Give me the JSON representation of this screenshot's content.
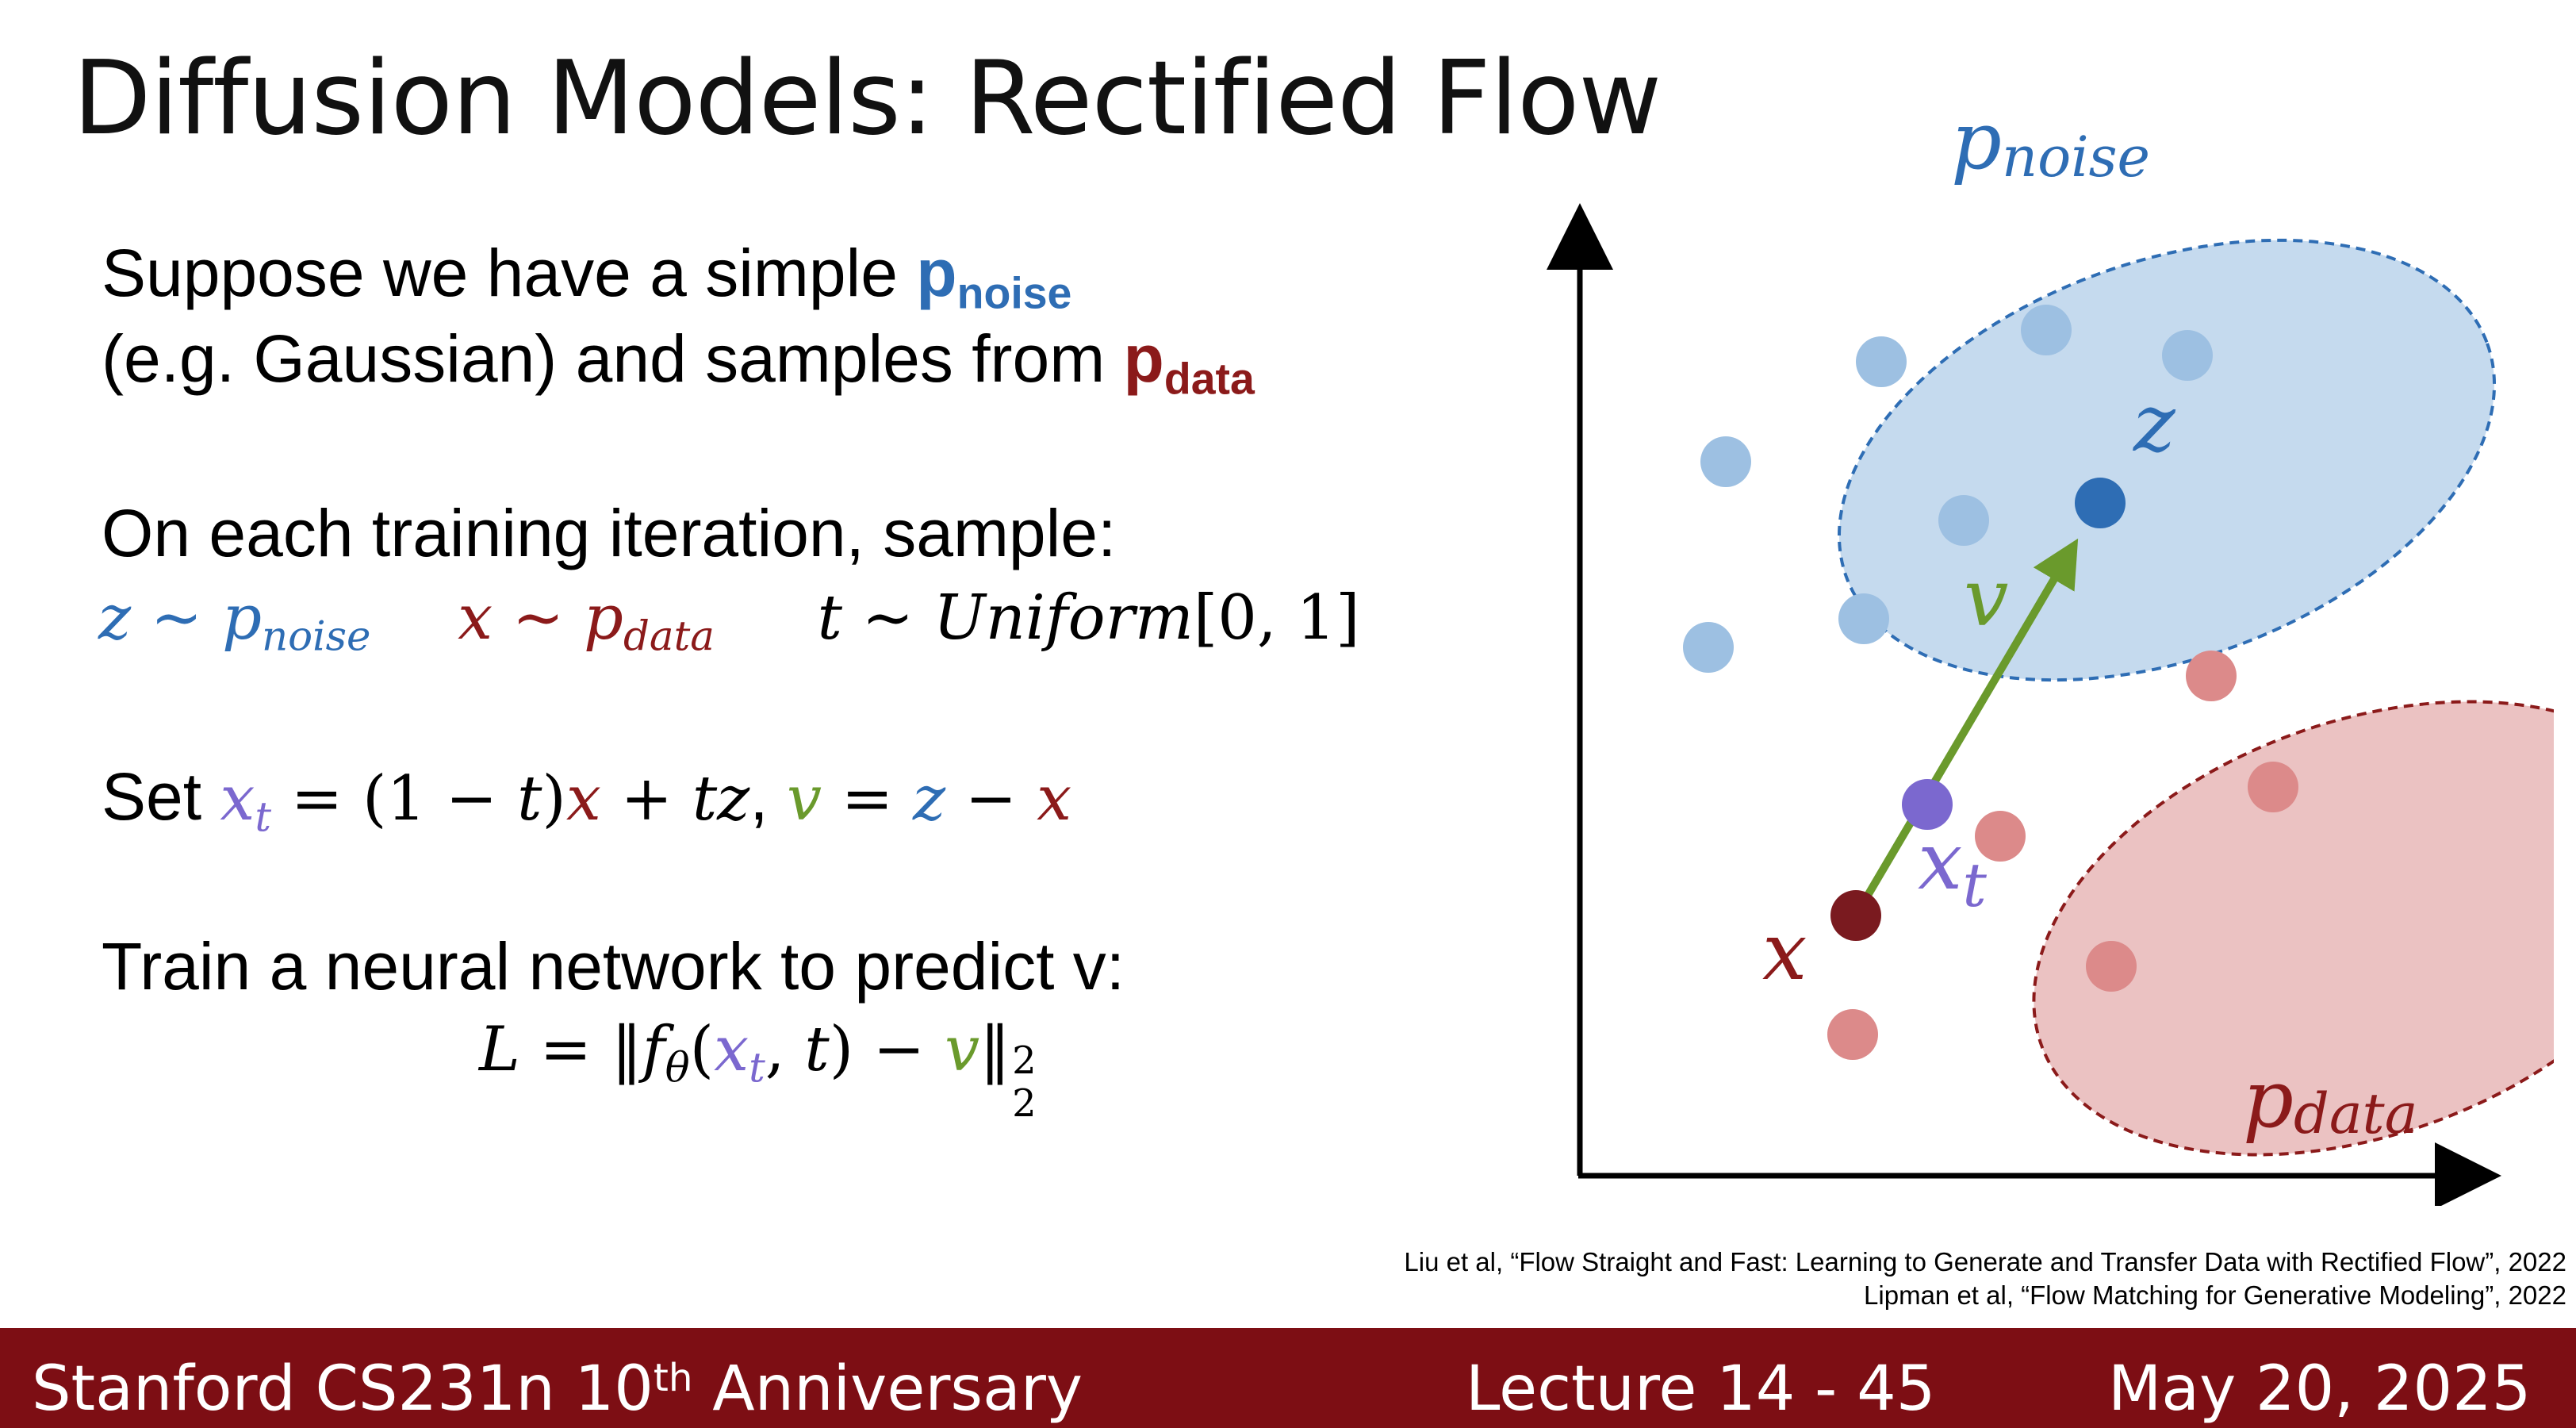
{
  "slide": {
    "title": "Diffusion Models: Rectified Flow",
    "intro": {
      "line1_prefix": "Suppose we have a simple ",
      "pnoise_base": "p",
      "pnoise_sub": "noise",
      "line2_prefix": "(e.g. Gaussian) and samples from ",
      "pdata_base": "p",
      "pdata_sub": "data"
    },
    "sample": {
      "heading": "On each training iteration, sample:",
      "z_var": "z",
      "tilde": "~",
      "p": "p",
      "noise": "noise",
      "x_var": "x",
      "data": "data",
      "t_var": "t",
      "uniform": "Uniform",
      "range": "[0, 1]"
    },
    "set": {
      "label": "Set ",
      "xt_base": "x",
      "xt_sub": "t",
      "eq1": " = (1 − ",
      "t": "t",
      "close": ")",
      "x": "x",
      "plus": " + ",
      "tz_t": "t",
      "tz_z": "z",
      "comma": ", ",
      "v": "v",
      "eq2": " = ",
      "z": "z",
      "minus": " − ",
      "x2": "x"
    },
    "train": {
      "heading": "Train a neural network to predict v:",
      "L": "L",
      "eq": " = ‖",
      "f": "f",
      "theta": "θ",
      "open": "(",
      "xt_base": "x",
      "xt_sub": "t",
      "comma": ", ",
      "t": "t",
      "close": ") − ",
      "v": "v",
      "norm": "‖",
      "sup": "2",
      "sub": "2"
    }
  },
  "diagram": {
    "pnoise_label": "p",
    "pnoise_sub": "noise",
    "pdata_label": "p",
    "pdata_sub": "data",
    "z_label": "z",
    "v_label": "v",
    "x_label": "x",
    "xt_label": "x",
    "xt_sub": "t",
    "colors": {
      "noise_fill": "#C5DAEE",
      "noise_stroke": "#2E6DB4",
      "noise_dot": "#9DC0E2",
      "z_dot": "#2E6DB4",
      "data_fill": "#EBC2C2",
      "data_stroke": "#8B1A1A",
      "data_dot": "#DC8A8A",
      "x_dot": "#7A1A1F",
      "xt_dot": "#7B68CF",
      "arrow": "#6A9A2C"
    }
  },
  "citations": [
    "Liu et al, “Flow Straight and Fast: Learning to Generate and Transfer Data with Rectified Flow”, 2022",
    "Lipman et al, “Flow Matching for Generative Modeling”, 2022"
  ],
  "footer": {
    "course": "Stanford CS231n 10",
    "course_sup": "th",
    "course_suffix": " Anniversary",
    "lecture": "Lecture 14 -  45",
    "date": "May 20, 2025"
  }
}
